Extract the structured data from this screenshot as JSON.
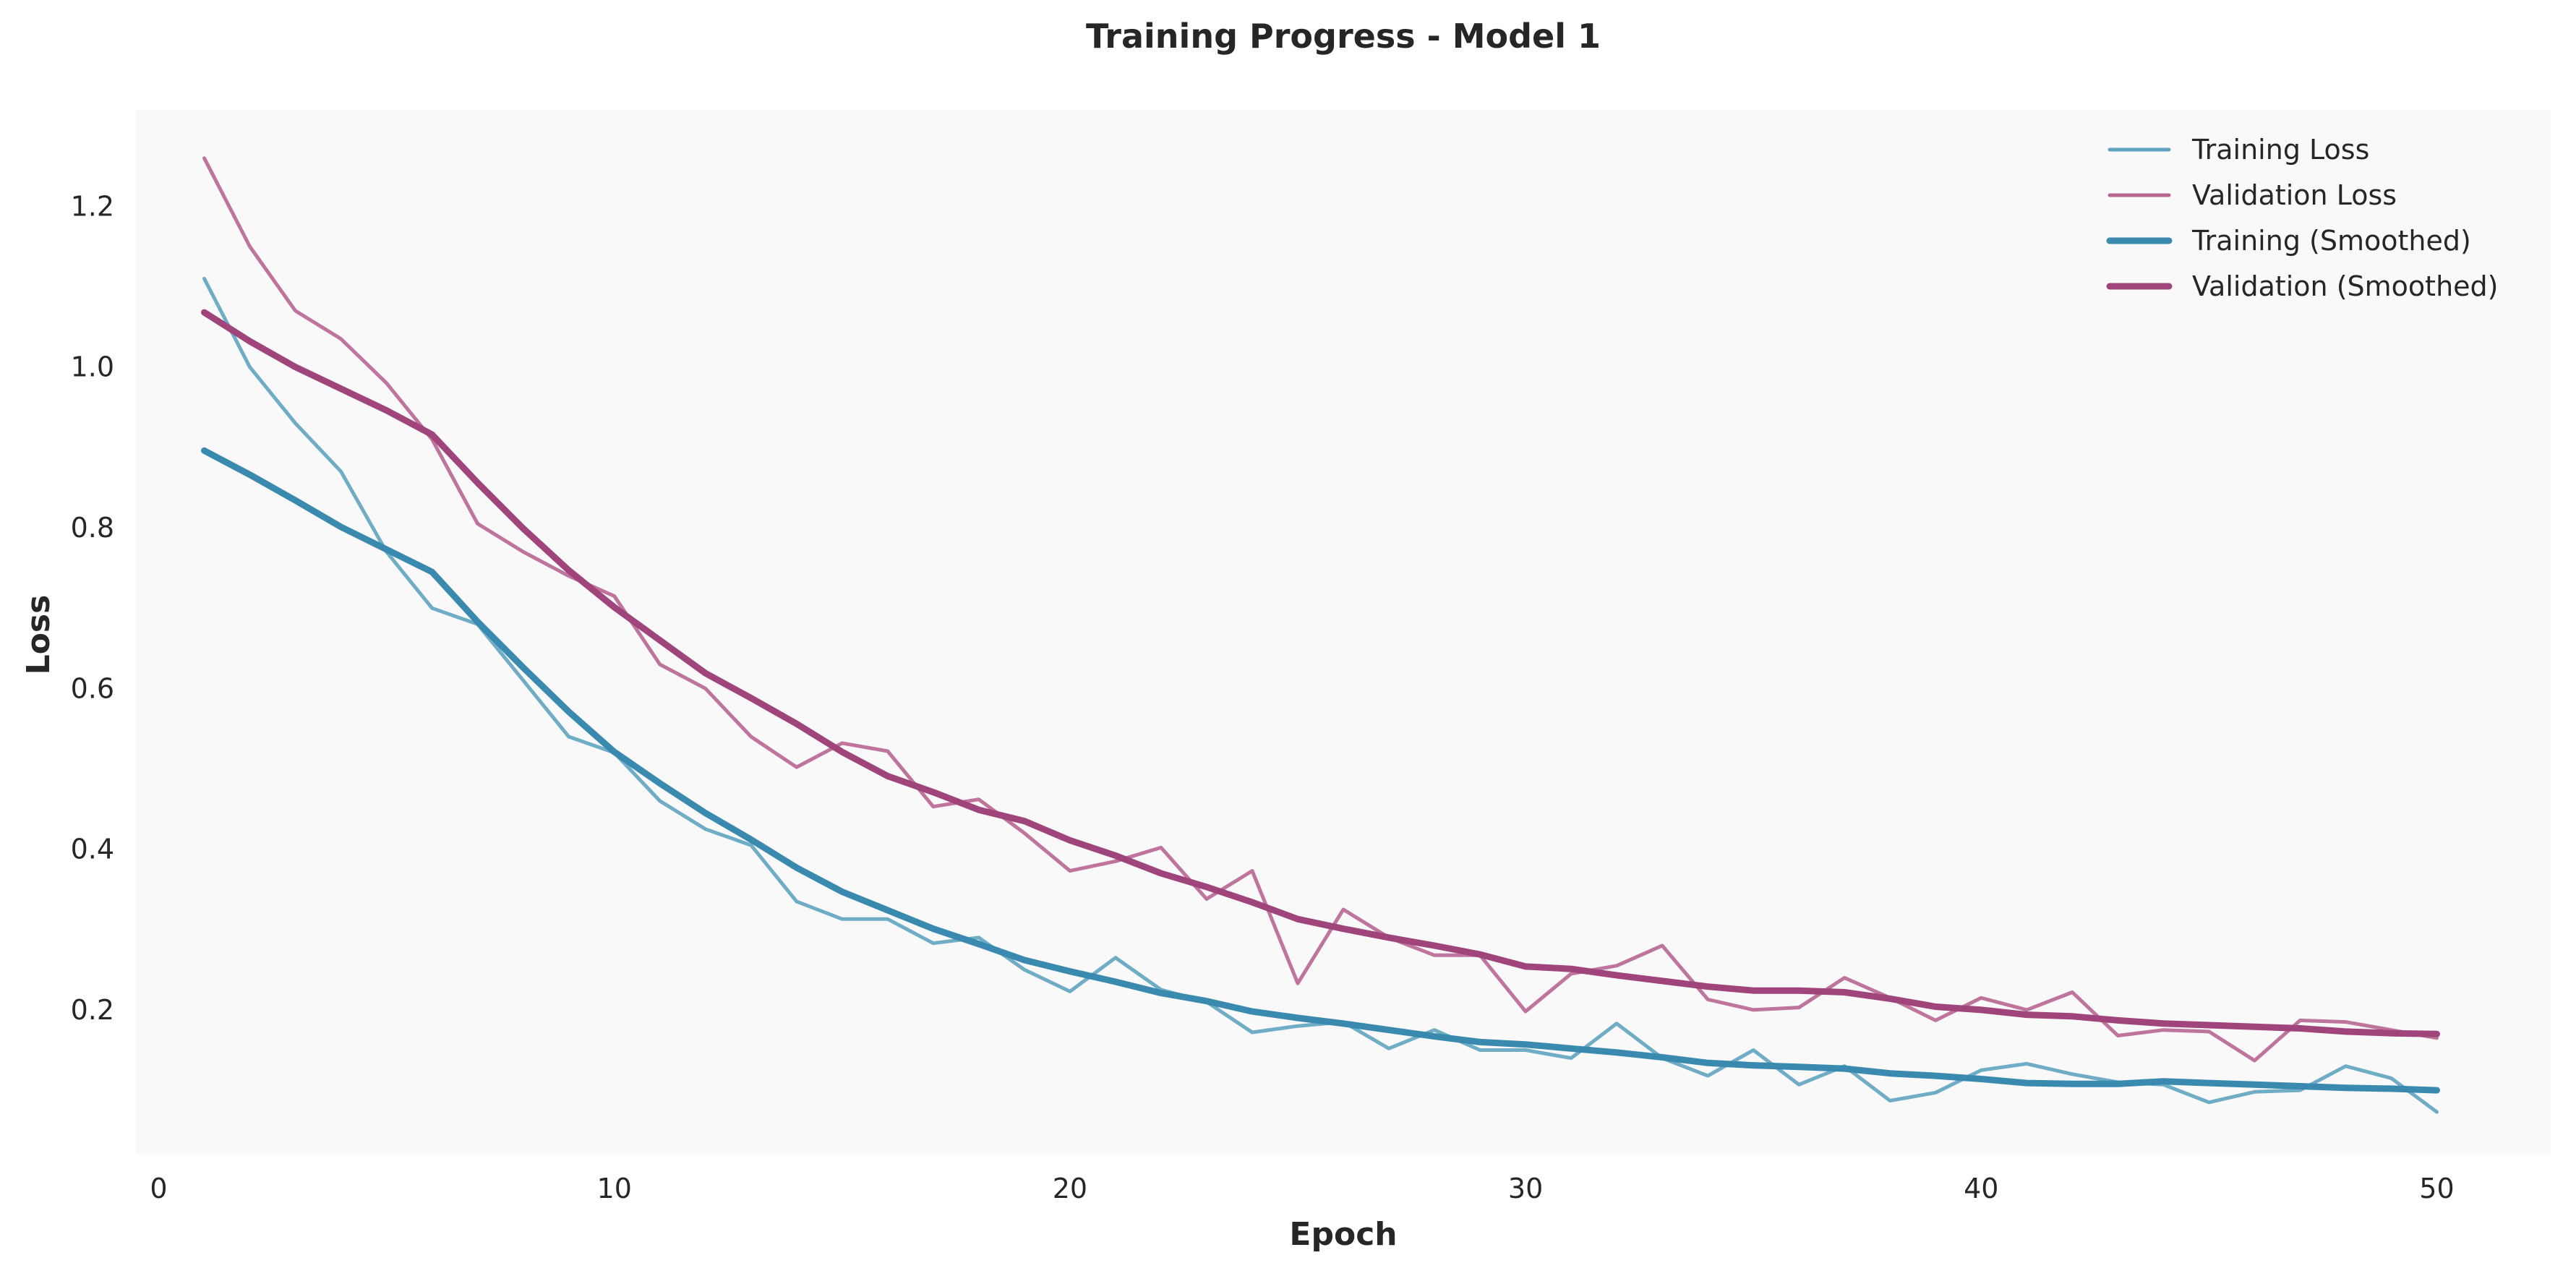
{
  "chart_data": {
    "type": "line",
    "title": "Training Progress - Model 1",
    "xlabel": "Epoch",
    "ylabel": "Loss",
    "xlim": [
      -0.5,
      52.5
    ],
    "ylim": [
      0.02,
      1.32
    ],
    "xticks": [
      0,
      10,
      20,
      30,
      40,
      50
    ],
    "xtick_labels": [
      "0",
      "10",
      "20",
      "30",
      "40",
      "50"
    ],
    "yticks": [
      0.2,
      0.4,
      0.6,
      0.8,
      1.0,
      1.2
    ],
    "ytick_labels": [
      "0.2",
      "0.4",
      "0.6",
      "0.8",
      "1.0",
      "1.2"
    ],
    "grid": false,
    "legend_position": "top-right",
    "x": [
      1,
      2,
      3,
      4,
      5,
      6,
      7,
      8,
      9,
      10,
      11,
      12,
      13,
      14,
      15,
      16,
      17,
      18,
      19,
      20,
      21,
      22,
      23,
      24,
      25,
      26,
      27,
      28,
      29,
      30,
      31,
      32,
      33,
      34,
      35,
      36,
      37,
      38,
      39,
      40,
      41,
      42,
      43,
      44,
      45,
      46,
      47,
      48,
      49,
      50
    ],
    "series": [
      {
        "name": "Training Loss",
        "color": "#5fa3bf",
        "style": "thin",
        "values": [
          1.11,
          1.0,
          0.93,
          0.87,
          0.77,
          0.7,
          0.68,
          0.61,
          0.54,
          0.52,
          0.46,
          0.425,
          0.405,
          0.335,
          0.313,
          0.313,
          0.283,
          0.29,
          0.25,
          0.223,
          0.265,
          0.225,
          0.21,
          0.172,
          0.18,
          0.185,
          0.152,
          0.175,
          0.15,
          0.15,
          0.14,
          0.183,
          0.14,
          0.118,
          0.15,
          0.107,
          0.13,
          0.087,
          0.097,
          0.125,
          0.133,
          0.12,
          0.11,
          0.107,
          0.085,
          0.098,
          0.1,
          0.13,
          0.115,
          0.073
        ]
      },
      {
        "name": "Validation Loss",
        "color": "#b86592",
        "style": "thin",
        "values": [
          1.26,
          1.15,
          1.07,
          1.035,
          0.98,
          0.91,
          0.805,
          0.77,
          0.74,
          0.715,
          0.63,
          0.6,
          0.54,
          0.502,
          0.532,
          0.522,
          0.453,
          0.462,
          0.42,
          0.373,
          0.385,
          0.402,
          0.338,
          0.373,
          0.233,
          0.325,
          0.29,
          0.268,
          0.268,
          0.198,
          0.245,
          0.255,
          0.28,
          0.213,
          0.2,
          0.203,
          0.24,
          0.215,
          0.187,
          0.215,
          0.2,
          0.222,
          0.168,
          0.175,
          0.173,
          0.137,
          0.187,
          0.185,
          0.175,
          0.165
        ]
      },
      {
        "name": "Training (Smoothed)",
        "color": "#3a8ab0",
        "style": "thick",
        "values": [
          0.896,
          0.866,
          0.834,
          0.801,
          0.773,
          0.745,
          0.683,
          0.626,
          0.571,
          0.521,
          0.482,
          0.445,
          0.412,
          0.377,
          0.347,
          0.324,
          0.301,
          0.282,
          0.262,
          0.248,
          0.235,
          0.221,
          0.211,
          0.198,
          0.19,
          0.183,
          0.175,
          0.167,
          0.16,
          0.157,
          0.152,
          0.147,
          0.141,
          0.134,
          0.131,
          0.129,
          0.127,
          0.121,
          0.118,
          0.114,
          0.109,
          0.108,
          0.108,
          0.111,
          0.109,
          0.107,
          0.105,
          0.103,
          0.102,
          0.1
        ]
      },
      {
        "name": "Validation (Smoothed)",
        "color": "#a0457b",
        "style": "thick",
        "values": [
          1.068,
          1.032,
          1.0,
          0.973,
          0.946,
          0.916,
          0.856,
          0.799,
          0.747,
          0.701,
          0.66,
          0.619,
          0.588,
          0.556,
          0.521,
          0.491,
          0.471,
          0.449,
          0.435,
          0.411,
          0.392,
          0.37,
          0.353,
          0.334,
          0.313,
          0.301,
          0.29,
          0.28,
          0.269,
          0.254,
          0.251,
          0.243,
          0.236,
          0.229,
          0.224,
          0.224,
          0.222,
          0.214,
          0.204,
          0.2,
          0.194,
          0.192,
          0.187,
          0.183,
          0.181,
          0.179,
          0.177,
          0.173,
          0.171,
          0.17
        ]
      }
    ]
  },
  "colors": {
    "plot_background": "#f9f9f9",
    "text": "#262626"
  }
}
